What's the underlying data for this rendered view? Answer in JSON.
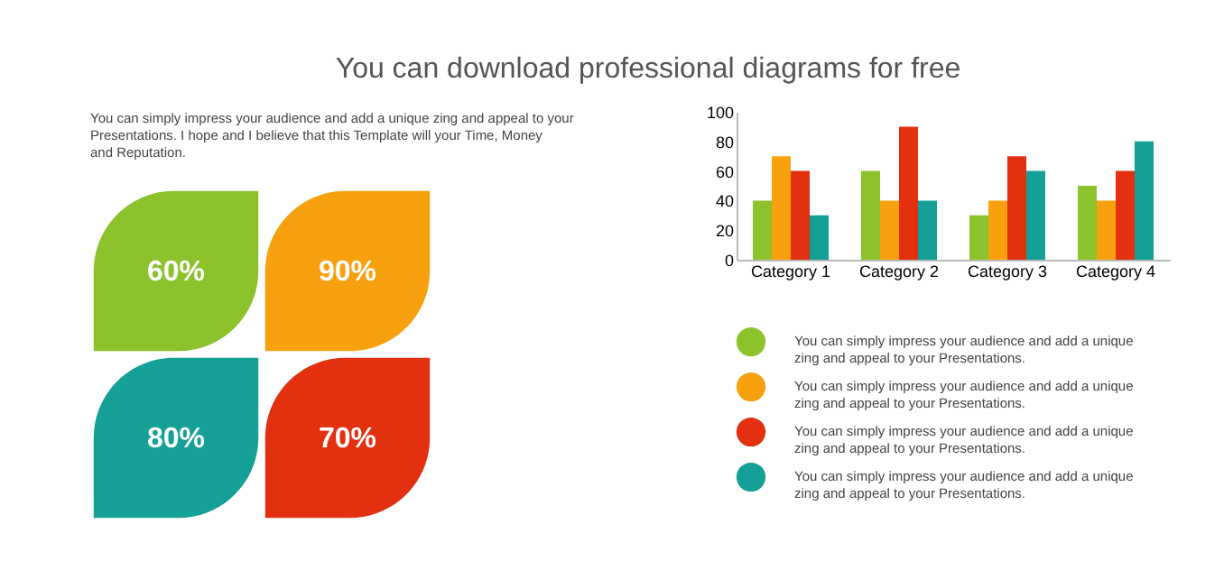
{
  "chart_data": [
    {
      "type": "other",
      "title": "You can download professional diagrams for free",
      "annotations": [
        "You can simply impress your audience and add a unique zing and appeal to your Presentations. I hope and I believe that this Template will your Time, Money and Reputation."
      ],
      "value_labels": [
        "60%",
        "90%",
        "80%",
        "70%"
      ],
      "colors": [
        "#8cc22b",
        "#f8a10f",
        "#14a096",
        "#e3300f"
      ]
    },
    {
      "type": "bar",
      "categories": [
        "Category 1",
        "Category 2",
        "Category 3",
        "Category 4"
      ],
      "series": [
        {
          "name": "You can simply impress your audience and add a unique zing and appeal to your Presentations.",
          "color": "#8cc22b",
          "values": [
            40,
            60,
            30,
            50
          ]
        },
        {
          "name": "You can simply impress your audience and add a unique zing and appeal to your Presentations.",
          "color": "#f8a10f",
          "values": [
            70,
            40,
            40,
            40
          ]
        },
        {
          "name": "You can simply impress your audience and add a unique zing and appeal to your Presentations.",
          "color": "#e3300f",
          "values": [
            60,
            90,
            70,
            60
          ]
        },
        {
          "name": "You can simply impress your audience and add a unique zing and appeal to your Presentations.",
          "color": "#14a096",
          "values": [
            30,
            40,
            60,
            80
          ]
        }
      ],
      "ylim": [
        0,
        100
      ],
      "yticks": [
        0,
        20,
        40,
        60,
        80,
        100
      ],
      "grid": false,
      "legend": "bottom"
    }
  ]
}
